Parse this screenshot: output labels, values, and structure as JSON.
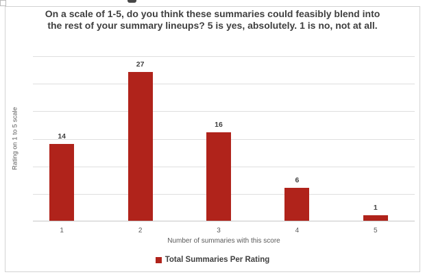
{
  "chart_data": {
    "type": "bar",
    "title": "On a scale of 1-5, do you think these summaries could feasibly blend into the rest of your summary lineups? 5 is yes, absolutely. 1 is no, not at all.",
    "categories": [
      "1",
      "2",
      "3",
      "4",
      "5"
    ],
    "values": [
      14,
      27,
      16,
      6,
      1
    ],
    "data_labels": [
      "14",
      "27",
      "16",
      "6",
      "1"
    ],
    "series_name": "Total Summaries Per Rating",
    "xlabel": "Number of summaries with this score",
    "ylabel": "Rating on 1 to 5 scale",
    "ylim": [
      0,
      30
    ],
    "gridline_step": 5,
    "grid": true,
    "y_tick_labels_visible": false,
    "data_labels_visible": true,
    "legend_position": "bottom"
  },
  "colors": {
    "bar": "#B0231B",
    "title_text": "#3F3F3F",
    "data_label_text": "#404040",
    "axis_text": "#595959",
    "gridline": "#DEDEDE",
    "axis_line": "#C6C6C6",
    "frame_border": "#D2D2D2",
    "background": "#FFFFFF"
  }
}
